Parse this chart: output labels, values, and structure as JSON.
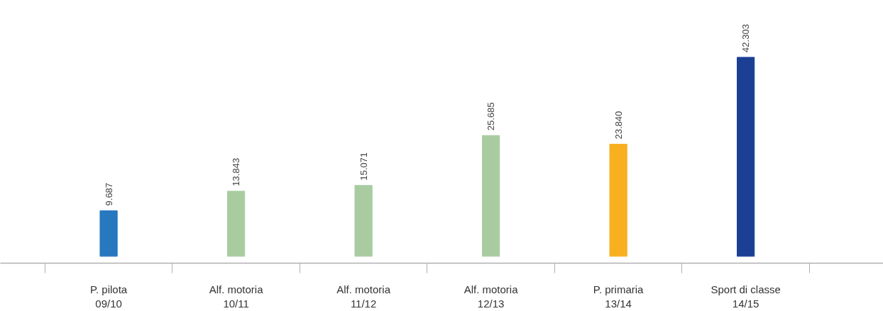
{
  "chart_data": {
    "type": "bar",
    "categories": [
      "P. pilota\n09/10",
      "Alf. motoria\n10/11",
      "Alf. motoria\n11/12",
      "Alf. motoria\n12/13",
      "P. primaria\n13/14",
      "Sport di classe\n14/15"
    ],
    "values": [
      9687,
      13843,
      15071,
      25685,
      23840,
      42303
    ],
    "colors": [
      "#2878c0",
      "#a8cca0",
      "#a8cca0",
      "#a8cca0",
      "#f8b020",
      "#1a3f94"
    ],
    "value_labels": [
      "9.687",
      "13.843",
      "15.071",
      "25.685",
      "23.840",
      "42.303"
    ]
  }
}
